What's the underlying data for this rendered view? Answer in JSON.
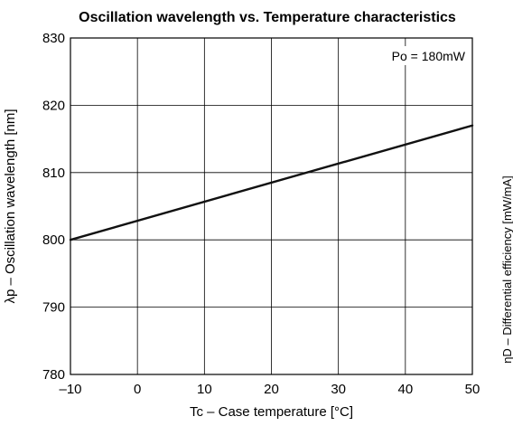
{
  "chart_data": {
    "type": "line",
    "title": "Oscillation wavelength vs. Temperature characteristics",
    "xlabel": "Tc – Case temperature [°C]",
    "ylabel": "λp – Oscillation wavelength [nm]",
    "secondary_ylabel": "ηD – Differential efficiency [mW/mA]",
    "annotation": "Po = 180mW",
    "xlim": [
      -10,
      50
    ],
    "ylim": [
      780,
      830
    ],
    "grid": true,
    "x_ticks": [
      -10,
      0,
      10,
      20,
      30,
      40,
      50
    ],
    "x_tick_labels": [
      "–10",
      "0",
      "10",
      "20",
      "30",
      "40",
      "50"
    ],
    "y_ticks": [
      780,
      790,
      800,
      810,
      820,
      830
    ],
    "y_tick_labels": [
      "780",
      "790",
      "800",
      "810",
      "820",
      "830"
    ],
    "series": [
      {
        "x": [
          -10,
          50
        ],
        "y": [
          800,
          817
        ]
      }
    ],
    "line_color": "#111111",
    "grid_color": "#000000"
  }
}
